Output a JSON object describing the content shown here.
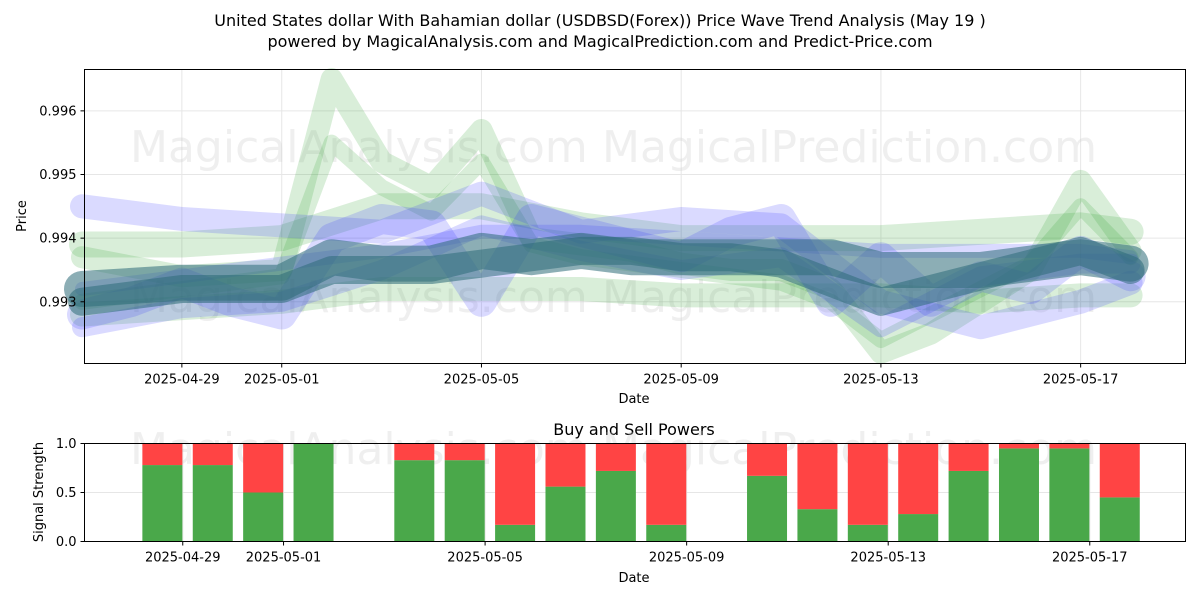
{
  "title": {
    "line1": "United States dollar With Bahamian dollar (USDBSD(Forex)) Price Wave Trend Analysis (May 19 )",
    "line2": "powered by MagicalAnalysis.com and MagicalPrediction.com and Predict-Price.com"
  },
  "watermarks": [
    "MagicalAnalysis.com",
    "MagicalPrediction.com"
  ],
  "colors": {
    "green": "#2ca02c",
    "blue": "#3333ff",
    "teal": "#2e6b78",
    "buy": "#4aa84a",
    "sell": "#ff4444"
  },
  "chart_data": [
    {
      "type": "line",
      "xlabel": "Date",
      "ylabel": "Price",
      "x_ticks": [
        "2025-04-29",
        "2025-05-01",
        "2025-05-05",
        "2025-05-09",
        "2025-05-13",
        "2025-05-17"
      ],
      "y_ticks": [
        "0.993",
        "0.994",
        "0.995",
        "0.996"
      ],
      "xlim": [
        "2025-04-27",
        "2025-05-19"
      ],
      "ylim": [
        0.99203,
        0.99665
      ],
      "grid": true,
      "series": [
        {
          "band": "green",
          "x": [
            "2025-04-27",
            "2025-04-29",
            "2025-05-01",
            "2025-05-02",
            "2025-05-03",
            "2025-05-04",
            "2025-05-05",
            "2025-05-06",
            "2025-05-07",
            "2025-05-08",
            "2025-05-09",
            "2025-05-10",
            "2025-05-11",
            "2025-05-12",
            "2025-05-13",
            "2025-05-14",
            "2025-05-15",
            "2025-05-16",
            "2025-05-17",
            "2025-05-18"
          ],
          "y": [
            0.9937,
            0.9934,
            0.9935,
            0.9965,
            0.9952,
            0.9948,
            0.9957,
            0.994,
            0.9939,
            0.9938,
            0.9936,
            0.9935,
            0.9935,
            0.9932,
            0.9922,
            0.9925,
            0.993,
            0.9935,
            0.9949,
            0.9938
          ]
        },
        {
          "band": "green",
          "x": [
            "2025-04-27",
            "2025-04-29",
            "2025-05-01",
            "2025-05-02",
            "2025-05-03",
            "2025-05-04",
            "2025-05-05",
            "2025-05-06",
            "2025-05-07",
            "2025-05-08",
            "2025-05-09",
            "2025-05-10",
            "2025-05-11",
            "2025-05-12",
            "2025-05-13",
            "2025-05-14",
            "2025-05-15",
            "2025-05-16",
            "2025-05-17",
            "2025-05-18"
          ],
          "y": [
            0.993,
            0.9932,
            0.9934,
            0.9955,
            0.9948,
            0.9944,
            0.9952,
            0.9939,
            0.9937,
            0.9936,
            0.9935,
            0.9934,
            0.9933,
            0.993,
            0.9924,
            0.9928,
            0.9932,
            0.9936,
            0.9945,
            0.9937
          ]
        },
        {
          "band": "green",
          "x": [
            "2025-04-27",
            "2025-04-29",
            "2025-05-01",
            "2025-05-03",
            "2025-05-05",
            "2025-05-07",
            "2025-05-09",
            "2025-05-11",
            "2025-05-13",
            "2025-05-15",
            "2025-05-17",
            "2025-05-18"
          ],
          "y": [
            0.9939,
            0.9939,
            0.994,
            0.9945,
            0.9945,
            0.9942,
            0.994,
            0.994,
            0.994,
            0.9941,
            0.9942,
            0.9941
          ]
        },
        {
          "band": "green",
          "x": [
            "2025-04-27",
            "2025-04-29",
            "2025-05-01",
            "2025-05-03",
            "2025-05-05",
            "2025-05-07",
            "2025-05-09",
            "2025-05-11",
            "2025-05-13",
            "2025-05-15",
            "2025-05-17",
            "2025-05-18"
          ],
          "y": [
            0.9928,
            0.9929,
            0.993,
            0.9932,
            0.9932,
            0.9932,
            0.9931,
            0.9931,
            0.9931,
            0.993,
            0.9931,
            0.9931
          ]
        },
        {
          "band": "blue",
          "x": [
            "2025-04-27",
            "2025-04-28",
            "2025-04-29",
            "2025-04-30",
            "2025-05-01",
            "2025-05-02",
            "2025-05-03",
            "2025-05-04",
            "2025-05-05",
            "2025-05-06",
            "2025-05-07",
            "2025-05-08",
            "2025-05-09",
            "2025-05-10",
            "2025-05-11",
            "2025-05-12",
            "2025-05-13",
            "2025-05-14",
            "2025-05-15",
            "2025-05-16",
            "2025-05-17",
            "2025-05-18"
          ],
          "y": [
            0.9928,
            0.993,
            0.9933,
            0.993,
            0.9928,
            0.994,
            0.9943,
            0.9942,
            0.993,
            0.9943,
            0.9941,
            0.9939,
            0.9937,
            0.9941,
            0.9943,
            0.993,
            0.9937,
            0.993,
            0.9934,
            0.9932,
            0.9938,
            0.9934
          ]
        },
        {
          "band": "blue",
          "x": [
            "2025-04-27",
            "2025-04-29",
            "2025-05-01",
            "2025-05-03",
            "2025-05-05",
            "2025-05-07",
            "2025-05-09",
            "2025-05-11",
            "2025-05-13",
            "2025-05-15",
            "2025-05-17",
            "2025-05-18"
          ],
          "y": [
            0.9945,
            0.9943,
            0.9942,
            0.9941,
            0.9947,
            0.9941,
            0.9943,
            0.9942,
            0.993,
            0.9926,
            0.993,
            0.9933
          ]
        },
        {
          "band": "blue",
          "x": [
            "2025-04-27",
            "2025-04-29",
            "2025-05-01",
            "2025-05-03",
            "2025-05-05",
            "2025-05-07",
            "2025-05-09",
            "2025-05-11",
            "2025-05-13",
            "2025-05-15",
            "2025-05-17",
            "2025-05-18"
          ],
          "y": [
            0.9926,
            0.9929,
            0.993,
            0.9935,
            0.9942,
            0.9938,
            0.9935,
            0.9937,
            0.9926,
            0.9934,
            0.9936,
            0.9936
          ]
        },
        {
          "band": "blue",
          "x": [
            "2025-04-27",
            "2025-04-29",
            "2025-05-01",
            "2025-05-03",
            "2025-05-05",
            "2025-05-07",
            "2025-05-09",
            "2025-05-11",
            "2025-05-13",
            "2025-05-15",
            "2025-05-17",
            "2025-05-18"
          ],
          "y": [
            0.9932,
            0.9934,
            0.9936,
            0.9938,
            0.9941,
            0.9941,
            0.994,
            0.9939,
            0.9938,
            0.9938,
            0.9938,
            0.9937
          ]
        },
        {
          "band": "teal",
          "x": [
            "2025-04-27",
            "2025-04-29",
            "2025-05-01",
            "2025-05-02",
            "2025-05-03",
            "2025-05-04",
            "2025-05-05",
            "2025-05-06",
            "2025-05-07",
            "2025-05-08",
            "2025-05-09",
            "2025-05-10",
            "2025-05-11",
            "2025-05-12",
            "2025-05-13",
            "2025-05-14",
            "2025-05-15",
            "2025-05-16",
            "2025-05-17",
            "2025-05-18"
          ],
          "y": [
            0.9932,
            0.9933,
            0.9933,
            0.9937,
            0.9936,
            0.9936,
            0.9938,
            0.9937,
            0.9938,
            0.9937,
            0.9937,
            0.9937,
            0.9937,
            0.9937,
            0.9935,
            0.9935,
            0.9935,
            0.9936,
            0.9937,
            0.9936
          ]
        },
        {
          "band": "teal",
          "x": [
            "2025-04-27",
            "2025-04-29",
            "2025-05-01",
            "2025-05-02",
            "2025-05-03",
            "2025-05-04",
            "2025-05-05",
            "2025-05-06",
            "2025-05-07",
            "2025-05-08",
            "2025-05-09",
            "2025-05-10",
            "2025-05-11",
            "2025-05-12",
            "2025-05-13",
            "2025-05-14",
            "2025-05-15",
            "2025-05-16",
            "2025-05-17",
            "2025-05-18"
          ],
          "y": [
            0.993,
            0.9932,
            0.9932,
            0.9935,
            0.9935,
            0.9935,
            0.9936,
            0.9937,
            0.9938,
            0.9938,
            0.9937,
            0.9937,
            0.9936,
            0.9933,
            0.993,
            0.9932,
            0.9934,
            0.9936,
            0.9938,
            0.9935
          ]
        }
      ]
    },
    {
      "type": "bar",
      "title": "Buy and Sell Powers",
      "xlabel": "Date",
      "ylabel": "Signal Strength",
      "x_ticks": [
        "2025-04-29",
        "2025-05-01",
        "2025-05-05",
        "2025-05-09",
        "2025-05-13",
        "2025-05-17"
      ],
      "y_ticks": [
        "0.0",
        "0.5",
        "1.0"
      ],
      "ylim": [
        0,
        1
      ],
      "grid": true,
      "categories": [
        "2025-04-28",
        "2025-04-29",
        "2025-04-30",
        "2025-05-01",
        "2025-05-03",
        "2025-05-04",
        "2025-05-05",
        "2025-05-06",
        "2025-05-07",
        "2025-05-08",
        "2025-05-10",
        "2025-05-11",
        "2025-05-12",
        "2025-05-13",
        "2025-05-14",
        "2025-05-15",
        "2025-05-16",
        "2025-05-17"
      ],
      "series": [
        {
          "values": [
            0.78,
            0.78,
            0.5,
            1.0,
            0.83,
            0.83,
            0.17,
            0.56,
            0.72,
            0.17,
            0.67,
            0.33,
            0.17,
            0.28,
            0.72,
            0.95,
            0.95,
            0.45
          ]
        },
        {
          "values": [
            0.22,
            0.22,
            0.5,
            0.0,
            0.17,
            0.17,
            0.83,
            0.44,
            0.28,
            0.83,
            0.33,
            0.67,
            0.83,
            0.72,
            0.28,
            0.05,
            0.05,
            0.55
          ]
        }
      ]
    }
  ]
}
